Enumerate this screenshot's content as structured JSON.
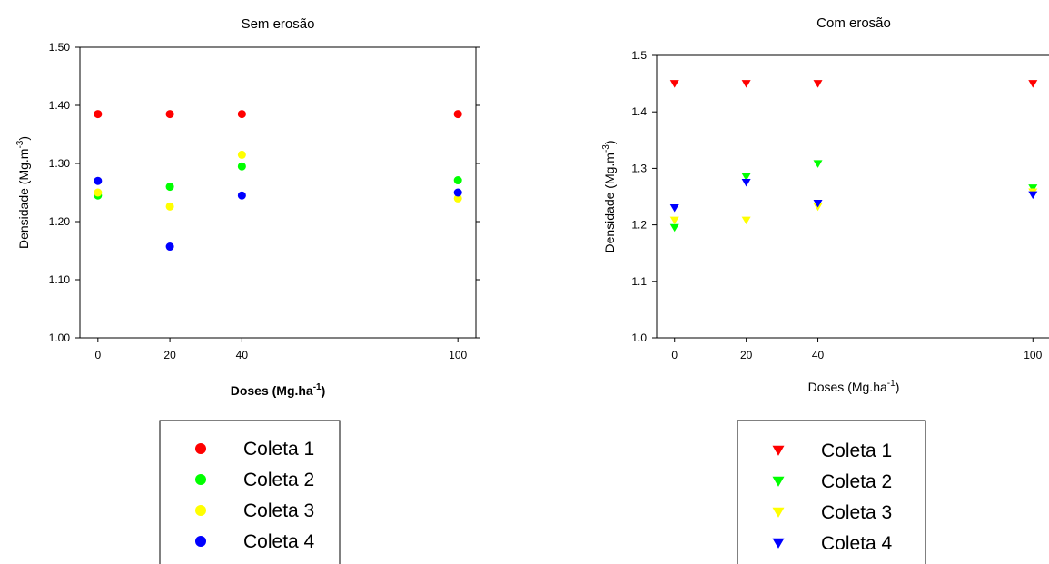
{
  "chart_data": [
    {
      "type": "scatter",
      "title": "Sem erosão",
      "xlabel": {
        "base": "Doses (Mg.ha",
        "sup": "-1",
        "close": ")"
      },
      "ylabel": {
        "base": "Densidade (Mg.m",
        "sup": "-3",
        "close": ")"
      },
      "xlim": [
        -5,
        105
      ],
      "ylim": [
        1.0,
        1.5
      ],
      "xticks": [
        0,
        20,
        40,
        100
      ],
      "xtick_labels": [
        "0",
        "20",
        "40",
        "100"
      ],
      "yticks": [
        1.0,
        1.1,
        1.2,
        1.3,
        1.4,
        1.5
      ],
      "ytick_labels": [
        "1.00",
        "1.10",
        "1.20",
        "1.30",
        "1.40",
        "1.50"
      ],
      "marker": "circle",
      "legend": "bottom",
      "series": [
        {
          "name": "Coleta 1",
          "color": "#ff0000",
          "x": [
            0,
            20,
            40,
            100
          ],
          "y": [
            1.385,
            1.385,
            1.385,
            1.385
          ]
        },
        {
          "name": "Coleta 2",
          "color": "#00ff00",
          "x": [
            0,
            20,
            40,
            100
          ],
          "y": [
            1.245,
            1.26,
            1.295,
            1.271
          ]
        },
        {
          "name": "Coleta 3",
          "color": "#ffff00",
          "x": [
            0,
            20,
            40,
            100
          ],
          "y": [
            1.25,
            1.226,
            1.315,
            1.24
          ]
        },
        {
          "name": "Coleta 4",
          "color": "#0000ff",
          "x": [
            0,
            20,
            40,
            100
          ],
          "y": [
            1.27,
            1.157,
            1.245,
            1.25
          ]
        }
      ]
    },
    {
      "type": "scatter",
      "title": "Com erosão",
      "xlabel": {
        "base": "Doses (Mg.ha",
        "sup": "-1",
        "close": ")"
      },
      "ylabel": {
        "base": "Densidade (Mg.m",
        "sup": "-3",
        "close": ")"
      },
      "xlim": [
        -5,
        105
      ],
      "ylim": [
        1.0,
        1.5
      ],
      "xticks": [
        0,
        20,
        40,
        100
      ],
      "xtick_labels": [
        "0",
        "20",
        "40",
        "100"
      ],
      "yticks": [
        1.0,
        1.1,
        1.2,
        1.3,
        1.4,
        1.5
      ],
      "ytick_labels": [
        "1.0",
        "1.1",
        "1.2",
        "1.3",
        "1.4",
        "1.5"
      ],
      "marker": "triangle-down",
      "legend": "bottom",
      "series": [
        {
          "name": "Coleta 1",
          "color": "#ff0000",
          "x": [
            0,
            20,
            40,
            100
          ],
          "y": [
            1.45,
            1.45,
            1.45,
            1.45
          ]
        },
        {
          "name": "Coleta 2",
          "color": "#00ff00",
          "x": [
            0,
            20,
            40,
            100
          ],
          "y": [
            1.195,
            1.285,
            1.308,
            1.265
          ]
        },
        {
          "name": "Coleta 3",
          "color": "#ffff00",
          "x": [
            0,
            20,
            40,
            100
          ],
          "y": [
            1.208,
            1.208,
            1.232,
            1.258
          ]
        },
        {
          "name": "Coleta 4",
          "color": "#0000ff",
          "x": [
            0,
            20,
            40,
            100
          ],
          "y": [
            1.23,
            1.275,
            1.238,
            1.253
          ]
        }
      ]
    }
  ]
}
